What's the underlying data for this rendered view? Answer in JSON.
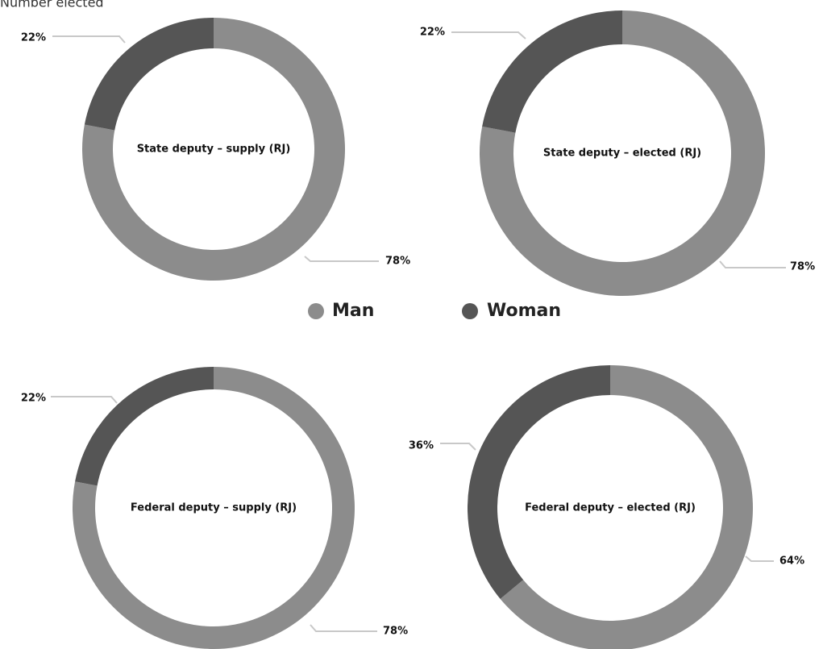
{
  "header": {
    "title": "Number elected"
  },
  "chart_data": [
    {
      "type": "pie",
      "title": "State deputy – supply (RJ)",
      "categories": [
        "Man",
        "Woman"
      ],
      "values": [
        78,
        22
      ],
      "value_labels": [
        "78%",
        "22%"
      ],
      "colors": [
        "#8c8c8c",
        "#555555"
      ]
    },
    {
      "type": "pie",
      "title": "State deputy – elected (RJ)",
      "categories": [
        "Man",
        "Woman"
      ],
      "values": [
        78,
        22
      ],
      "value_labels": [
        "78%",
        "22%"
      ],
      "colors": [
        "#8c8c8c",
        "#555555"
      ]
    },
    {
      "type": "pie",
      "title": "Federal deputy – supply (RJ)",
      "categories": [
        "Man",
        "Woman"
      ],
      "values": [
        78,
        22
      ],
      "value_labels": [
        "78%",
        "22%"
      ],
      "colors": [
        "#8c8c8c",
        "#555555"
      ]
    },
    {
      "type": "pie",
      "title": "Federal deputy – elected (RJ)",
      "categories": [
        "Man",
        "Woman"
      ],
      "values": [
        64,
        36
      ],
      "value_labels": [
        "64%",
        "36%"
      ],
      "colors": [
        "#8c8c8c",
        "#555555"
      ]
    }
  ]
}
